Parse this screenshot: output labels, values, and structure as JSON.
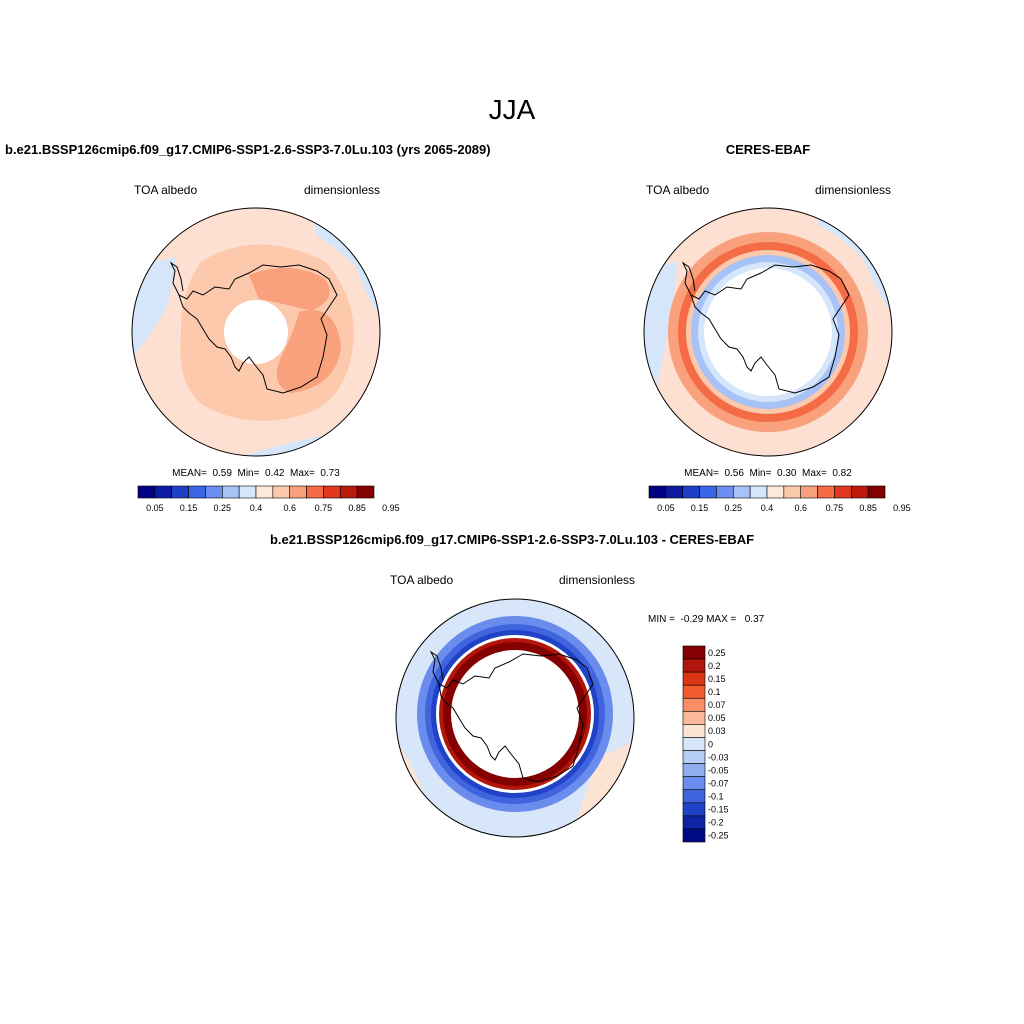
{
  "main_title": "JJA",
  "colors": {
    "ocean_base": "#fde0d2",
    "land_outline": "#000000"
  },
  "panels": [
    {
      "id": "model",
      "title": "b.e21.BSSP126cmip6.f09_g17.CMIP6-SSP1-2.6-SSP3-7.0Lu.103 (yrs 2065-2089)",
      "left_label": "TOA albedo",
      "right_label": "dimensionless",
      "stats": {
        "mean_label": "MEAN=",
        "mean": "0.59",
        "min_label": "Min=",
        "min": "0.42",
        "max_label": "Max=",
        "max": "0.73"
      }
    },
    {
      "id": "obs",
      "title": "CERES-EBAF",
      "left_label": "TOA albedo",
      "right_label": "dimensionless",
      "stats": {
        "mean_label": "MEAN=",
        "mean": "0.56",
        "min_label": "Min=",
        "min": "0.30",
        "max_label": "Max=",
        "max": "0.82"
      }
    },
    {
      "id": "diff",
      "title": "b.e21.BSSP126cmip6.f09_g17.CMIP6-SSP1-2.6-SSP3-7.0Lu.103 - CERES-EBAF",
      "left_label": "TOA albedo",
      "right_label": "dimensionless",
      "stats": {
        "min_label": "MIN =",
        "min": "-0.29",
        "max_label": "MAX =",
        "max": "0.37"
      }
    }
  ],
  "colorbar_abs": {
    "colors": [
      "#000083",
      "#0d1ba3",
      "#1f3fc9",
      "#3a66e6",
      "#6b8ff0",
      "#a6c2f7",
      "#d6e6fa",
      "#fde9dc",
      "#fcc9ad",
      "#f9a07c",
      "#f46b45",
      "#e2371f",
      "#bb1a0d",
      "#850000"
    ],
    "tick_labels": [
      "0.05",
      "0.15",
      "0.25",
      "0.4",
      "0.6",
      "0.75",
      "0.85",
      "0.95"
    ]
  },
  "colorbar_diff": {
    "colors": [
      "#850000",
      "#b2150b",
      "#dc3514",
      "#f35b2f",
      "#f78e64",
      "#fbb99a",
      "#fde3d3",
      "#d7e6f8",
      "#b6cdf5",
      "#8fadef",
      "#6a8cec",
      "#3f64de",
      "#1f42c7",
      "#0e24a4",
      "#000a83"
    ],
    "tick_labels": [
      "0.25",
      "0.2",
      "0.15",
      "0.1",
      "0.07",
      "0.05",
      "0.03",
      "0",
      "-0.03",
      "-0.05",
      "-0.07",
      "-0.1",
      "-0.15",
      "-0.2",
      "-0.25"
    ]
  }
}
